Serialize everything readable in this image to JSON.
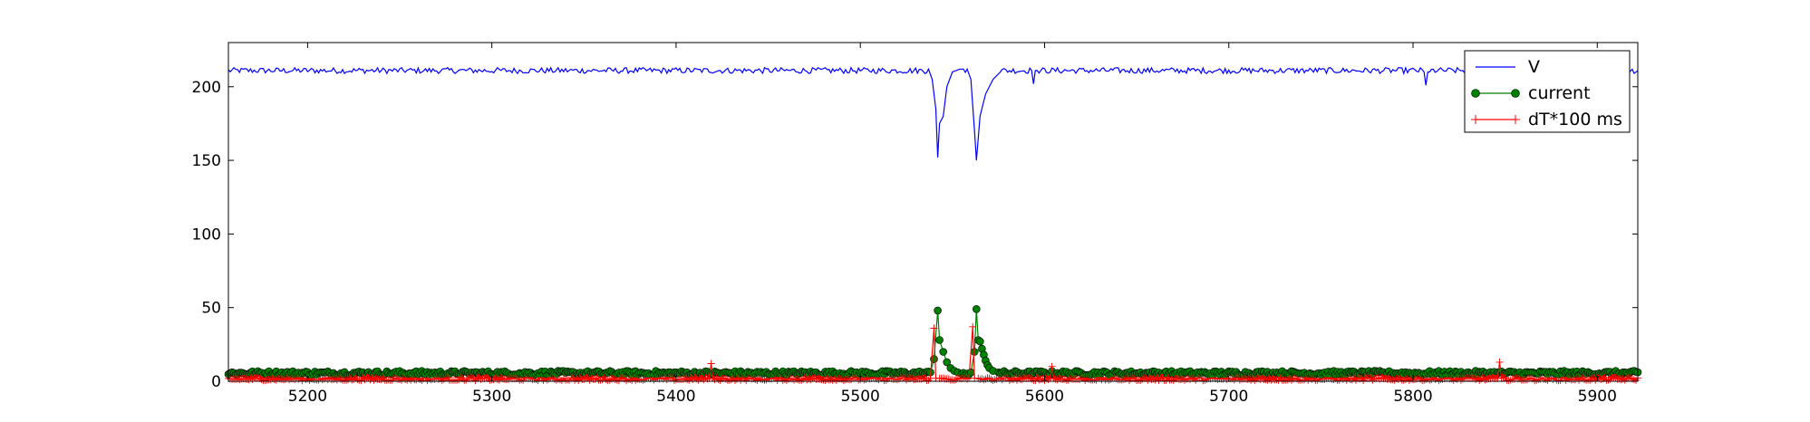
{
  "chart_data": {
    "type": "line",
    "title": "",
    "xlabel": "",
    "ylabel": "",
    "xlim": [
      5157,
      5922
    ],
    "ylim": [
      0,
      230
    ],
    "xticks": [
      5200,
      5300,
      5400,
      5500,
      5600,
      5700,
      5800,
      5900
    ],
    "yticks": [
      0,
      50,
      100,
      150,
      200
    ],
    "grid": false,
    "legend": {
      "placement": "top-right",
      "entries": [
        "V",
        "current",
        "dT*100 ms"
      ]
    },
    "series": [
      {
        "name": "V",
        "color": "#0000ff",
        "marker": "none",
        "baseline": 211,
        "noise": 2,
        "events": [
          {
            "x": [
              5537,
              5539,
              5541,
              5542,
              5543,
              5545,
              5547,
              5550,
              5554,
              5556
            ],
            "y": [
              212,
              205,
              185,
              152,
              175,
              180,
              200,
              210,
              212,
              212
            ]
          },
          {
            "x": [
              5558,
              5560,
              5562,
              5563,
              5565,
              5568,
              5572,
              5576
            ],
            "y": [
              212,
              205,
              170,
              150,
              180,
              195,
              205,
              210
            ]
          },
          {
            "x": [
              5593,
              5594,
              5595,
              5596
            ],
            "y": [
              211,
              202,
              211,
              211
            ]
          },
          {
            "x": [
              5806,
              5807,
              5808,
              5809
            ],
            "y": [
              210,
              201,
              210,
              210
            ]
          }
        ]
      },
      {
        "name": "current",
        "color": "#008000",
        "marker": "circle",
        "baseline": 5.5,
        "noise": 1.5,
        "events": [
          {
            "x": [
              5538,
              5540,
              5542,
              5543,
              5545,
              5547,
              5549,
              5551,
              5553,
              5555
            ],
            "y": [
              6,
              15,
              48,
              28,
              20,
              13,
              9,
              7,
              6,
              5
            ]
          },
          {
            "x": [
              5560,
              5562,
              5563,
              5564,
              5565,
              5566,
              5567,
              5568,
              5569,
              5570,
              5572,
              5575
            ],
            "y": [
              6,
              20,
              49,
              28,
              27,
              22,
              18,
              14,
              11,
              9,
              7,
              6
            ]
          }
        ]
      },
      {
        "name": "dT*100 ms",
        "color": "#ff0000",
        "marker": "plus",
        "baseline": 1.5,
        "noise": 1,
        "events": [
          {
            "x": [
              5418,
              5419,
              5420
            ],
            "y": [
              2,
              12,
              2
            ]
          },
          {
            "x": [
              5538,
              5540,
              5541,
              5543
            ],
            "y": [
              2,
              36,
              2,
              2
            ]
          },
          {
            "x": [
              5559,
              5561,
              5562,
              5564
            ],
            "y": [
              2,
              37,
              2,
              2
            ]
          },
          {
            "x": [
              5603,
              5604,
              5605
            ],
            "y": [
              2,
              10,
              2
            ]
          },
          {
            "x": [
              5846,
              5847,
              5848
            ],
            "y": [
              2,
              13,
              2
            ]
          }
        ]
      }
    ]
  }
}
